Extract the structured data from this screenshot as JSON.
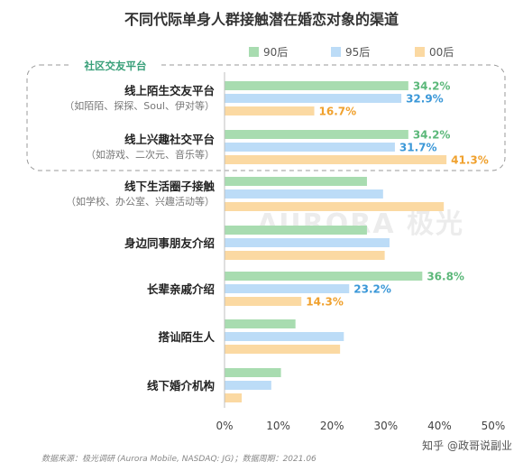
{
  "chart_data": {
    "type": "bar",
    "orientation": "horizontal",
    "title": "不同代际单身人群接触潜在婚恋对象的渠道",
    "categories": [
      {
        "label": "线上陌生交友平台",
        "sublabel": "（如陌陌、探探、Soul、伊对等）"
      },
      {
        "label": "线上兴趣社交平台",
        "sublabel": "（如游戏、二次元、音乐等）"
      },
      {
        "label": "线下生活圈子接触",
        "sublabel": "（如学校、办公室、兴趣活动等）"
      },
      {
        "label": "身边同事朋友介绍",
        "sublabel": ""
      },
      {
        "label": "长辈亲戚介绍",
        "sublabel": ""
      },
      {
        "label": "搭讪陌生人",
        "sublabel": ""
      },
      {
        "label": "线下婚介机构",
        "sublabel": ""
      }
    ],
    "series": [
      {
        "name": "90后",
        "color": "#a8dcb0",
        "label_color": "#5cb87a",
        "values": [
          34.2,
          34.2,
          26.5,
          26.5,
          36.8,
          13.2,
          10.5
        ],
        "labels": [
          "34.2%",
          "34.2%",
          "",
          "",
          "36.8%",
          "",
          ""
        ]
      },
      {
        "name": "95后",
        "color": "#bcdcf7",
        "label_color": "#3b98d8",
        "values": [
          32.9,
          31.7,
          29.5,
          30.7,
          23.2,
          22.2,
          8.7
        ],
        "labels": [
          "32.9%",
          "31.7%",
          "",
          "",
          "23.2%",
          "",
          ""
        ]
      },
      {
        "name": "00后",
        "color": "#fbd9a2",
        "label_color": "#f0a12e",
        "values": [
          16.7,
          41.3,
          40.8,
          29.8,
          14.3,
          21.5,
          3.2
        ],
        "labels": [
          "16.7%",
          "41.3%",
          "",
          "",
          "14.3%",
          "",
          ""
        ]
      }
    ],
    "xlim": [
      0,
      50
    ],
    "xticks": [
      "0%",
      "10%",
      "20%",
      "30%",
      "40%",
      "50%"
    ],
    "legend_position": "top",
    "group_label": "社区交友平台"
  },
  "watermark": "AURORA 极光",
  "footer": {
    "source": "数据来源：极光调研 (Aurora Mobile, NASDAQ: JG)；数据周期：2021.06",
    "credit": "知乎 @政哥说副业"
  }
}
